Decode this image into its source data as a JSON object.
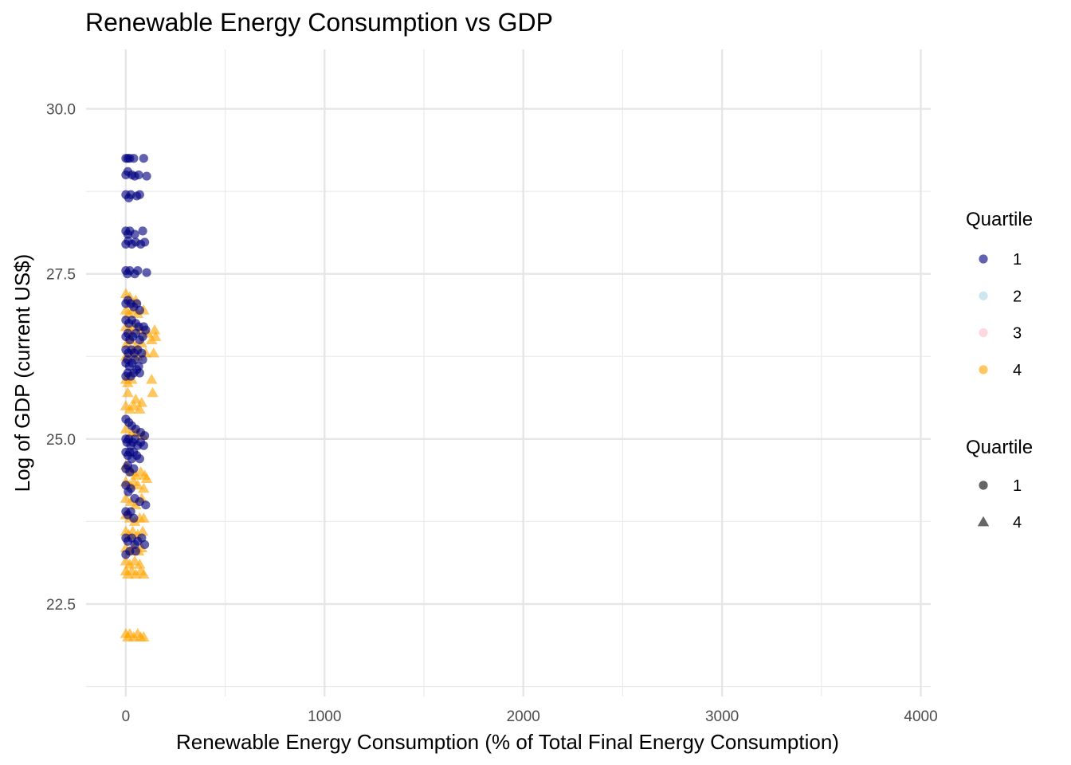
{
  "chart_data": {
    "type": "scatter",
    "title": "Renewable Energy Consumption vs GDP",
    "xlabel": "Renewable Energy Consumption (% of Total Final Energy Consumption)",
    "ylabel": "Log of GDP (current US$)",
    "xlim": [
      -200,
      4050
    ],
    "ylim": [
      21.1,
      30.9
    ],
    "x_ticks": [
      0,
      1000,
      2000,
      3000,
      4000
    ],
    "x_tick_labels": [
      "0",
      "1000",
      "2000",
      "3000",
      "4000"
    ],
    "x_minor_ticks": [
      500,
      1500,
      2500,
      3500
    ],
    "y_ticks": [
      22.5,
      25.0,
      27.5,
      30.0
    ],
    "y_tick_labels": [
      "22.5",
      "25.0",
      "27.5",
      "30.0"
    ],
    "y_minor_ticks": [
      21.25,
      23.75,
      26.25,
      28.75
    ],
    "grid": true,
    "legend_position": "right",
    "color_legend": {
      "title": "Quartile",
      "entries": [
        {
          "label": "1",
          "color": "#000080"
        },
        {
          "label": "2",
          "color": "#add8e6"
        },
        {
          "label": "3",
          "color": "#ffc0cb"
        },
        {
          "label": "4",
          "color": "#ffa500"
        }
      ]
    },
    "shape_legend": {
      "title": "Quartile",
      "entries": [
        {
          "label": "1",
          "shape": "circle"
        },
        {
          "label": "4",
          "shape": "triangle"
        }
      ]
    },
    "series": [
      {
        "name": "1",
        "color": "#000080",
        "shape": "circle",
        "points": [
          [
            0,
            29.25
          ],
          [
            10,
            29.25
          ],
          [
            20,
            29.25
          ],
          [
            40,
            29.25
          ],
          [
            90,
            29.25
          ],
          [
            0,
            29.0
          ],
          [
            10,
            29.05
          ],
          [
            30,
            29.0
          ],
          [
            45,
            28.98
          ],
          [
            65,
            29.0
          ],
          [
            105,
            28.98
          ],
          [
            0,
            28.7
          ],
          [
            15,
            28.65
          ],
          [
            25,
            28.7
          ],
          [
            55,
            28.68
          ],
          [
            70,
            28.7
          ],
          [
            0,
            28.15
          ],
          [
            10,
            28.1
          ],
          [
            20,
            28.15
          ],
          [
            45,
            28.1
          ],
          [
            85,
            28.15
          ],
          [
            0,
            27.95
          ],
          [
            12,
            28.0
          ],
          [
            30,
            27.95
          ],
          [
            50,
            27.98
          ],
          [
            75,
            27.95
          ],
          [
            95,
            27.98
          ],
          [
            0,
            27.55
          ],
          [
            8,
            27.5
          ],
          [
            20,
            27.55
          ],
          [
            45,
            27.5
          ],
          [
            60,
            27.55
          ],
          [
            105,
            27.52
          ],
          [
            0,
            27.05
          ],
          [
            10,
            27.1
          ],
          [
            25,
            27.05
          ],
          [
            40,
            27.0
          ],
          [
            55,
            27.05
          ],
          [
            70,
            26.95
          ],
          [
            0,
            26.8
          ],
          [
            15,
            26.75
          ],
          [
            30,
            26.8
          ],
          [
            50,
            26.75
          ],
          [
            65,
            26.7
          ],
          [
            90,
            26.7
          ],
          [
            100,
            26.65
          ],
          [
            0,
            26.55
          ],
          [
            10,
            26.6
          ],
          [
            20,
            26.5
          ],
          [
            35,
            26.55
          ],
          [
            50,
            26.6
          ],
          [
            70,
            26.5
          ],
          [
            85,
            26.55
          ],
          [
            0,
            26.35
          ],
          [
            12,
            26.3
          ],
          [
            28,
            26.35
          ],
          [
            42,
            26.3
          ],
          [
            60,
            26.35
          ],
          [
            80,
            26.3
          ],
          [
            0,
            26.15
          ],
          [
            8,
            26.2
          ],
          [
            18,
            26.1
          ],
          [
            30,
            26.15
          ],
          [
            45,
            26.2
          ],
          [
            65,
            26.1
          ],
          [
            85,
            26.2
          ],
          [
            0,
            25.95
          ],
          [
            10,
            26.0
          ],
          [
            25,
            25.95
          ],
          [
            40,
            26.0
          ],
          [
            55,
            26.05
          ],
          [
            70,
            26.0
          ],
          [
            0,
            25.3
          ],
          [
            15,
            25.25
          ],
          [
            30,
            25.2
          ],
          [
            50,
            25.15
          ],
          [
            75,
            25.1
          ],
          [
            95,
            25.05
          ],
          [
            0,
            25.0
          ],
          [
            5,
            24.95
          ],
          [
            15,
            25.0
          ],
          [
            25,
            24.9
          ],
          [
            35,
            24.95
          ],
          [
            45,
            25.0
          ],
          [
            60,
            24.9
          ],
          [
            75,
            24.95
          ],
          [
            90,
            24.9
          ],
          [
            0,
            24.8
          ],
          [
            10,
            24.75
          ],
          [
            20,
            24.8
          ],
          [
            30,
            24.7
          ],
          [
            40,
            24.8
          ],
          [
            55,
            24.75
          ],
          [
            70,
            24.7
          ],
          [
            0,
            24.55
          ],
          [
            10,
            24.6
          ],
          [
            20,
            24.5
          ],
          [
            40,
            24.55
          ],
          [
            0,
            24.3
          ],
          [
            12,
            24.2
          ],
          [
            25,
            24.25
          ],
          [
            45,
            24.1
          ],
          [
            70,
            24.05
          ],
          [
            100,
            24.0
          ],
          [
            0,
            23.9
          ],
          [
            10,
            23.85
          ],
          [
            25,
            23.9
          ],
          [
            40,
            23.8
          ],
          [
            0,
            23.5
          ],
          [
            10,
            23.45
          ],
          [
            30,
            23.5
          ],
          [
            45,
            23.4
          ],
          [
            60,
            23.45
          ],
          [
            80,
            23.5
          ],
          [
            95,
            23.4
          ],
          [
            0,
            23.25
          ],
          [
            20,
            23.3
          ],
          [
            50,
            23.3
          ]
        ]
      },
      {
        "name": "4",
        "color": "#ffa500",
        "shape": "triangle",
        "points": [
          [
            0,
            27.2
          ],
          [
            20,
            27.15
          ],
          [
            50,
            27.1
          ],
          [
            0,
            26.95
          ],
          [
            15,
            26.9
          ],
          [
            35,
            26.95
          ],
          [
            60,
            26.9
          ],
          [
            90,
            26.95
          ],
          [
            0,
            26.7
          ],
          [
            20,
            26.65
          ],
          [
            45,
            26.7
          ],
          [
            75,
            26.65
          ],
          [
            110,
            26.6
          ],
          [
            145,
            26.65
          ],
          [
            5,
            26.45
          ],
          [
            25,
            26.5
          ],
          [
            50,
            26.4
          ],
          [
            80,
            26.45
          ],
          [
            130,
            26.5
          ],
          [
            150,
            26.55
          ],
          [
            0,
            26.25
          ],
          [
            30,
            26.3
          ],
          [
            60,
            26.25
          ],
          [
            100,
            26.3
          ],
          [
            140,
            26.3
          ],
          [
            0,
            25.9
          ],
          [
            10,
            25.85
          ],
          [
            30,
            25.9
          ],
          [
            130,
            25.9
          ],
          [
            10,
            25.7
          ],
          [
            50,
            25.6
          ],
          [
            80,
            25.55
          ],
          [
            135,
            25.7
          ],
          [
            0,
            25.5
          ],
          [
            20,
            25.45
          ],
          [
            40,
            25.5
          ],
          [
            70,
            25.45
          ],
          [
            0,
            25.15
          ],
          [
            30,
            25.1
          ],
          [
            55,
            25.1
          ],
          [
            85,
            25.05
          ],
          [
            0,
            24.6
          ],
          [
            15,
            24.55
          ],
          [
            30,
            24.5
          ],
          [
            50,
            24.45
          ],
          [
            75,
            24.5
          ],
          [
            95,
            24.45
          ],
          [
            105,
            24.4
          ],
          [
            0,
            24.35
          ],
          [
            20,
            24.3
          ],
          [
            40,
            24.35
          ],
          [
            60,
            24.3
          ],
          [
            90,
            24.25
          ],
          [
            0,
            24.1
          ],
          [
            25,
            24.05
          ],
          [
            50,
            24.0
          ],
          [
            80,
            24.1
          ],
          [
            0,
            23.85
          ],
          [
            20,
            23.8
          ],
          [
            45,
            23.75
          ],
          [
            70,
            23.8
          ],
          [
            90,
            23.8
          ],
          [
            0,
            23.6
          ],
          [
            15,
            23.55
          ],
          [
            35,
            23.6
          ],
          [
            60,
            23.55
          ],
          [
            85,
            23.6
          ],
          [
            0,
            23.35
          ],
          [
            20,
            23.3
          ],
          [
            40,
            23.35
          ],
          [
            65,
            23.3
          ],
          [
            80,
            23.35
          ],
          [
            0,
            23.15
          ],
          [
            20,
            23.1
          ],
          [
            45,
            23.15
          ],
          [
            70,
            23.1
          ],
          [
            0,
            23.0
          ],
          [
            10,
            22.95
          ],
          [
            30,
            23.0
          ],
          [
            50,
            22.95
          ],
          [
            75,
            23.0
          ],
          [
            90,
            22.95
          ],
          [
            0,
            22.05
          ],
          [
            10,
            22.0
          ],
          [
            20,
            22.05
          ],
          [
            40,
            22.0
          ],
          [
            60,
            22.05
          ],
          [
            75,
            22.0
          ],
          [
            90,
            22.0
          ]
        ]
      }
    ]
  }
}
